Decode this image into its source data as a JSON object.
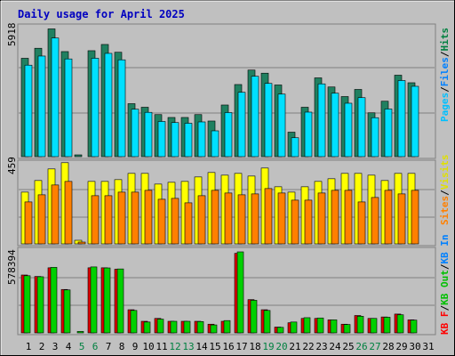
{
  "chart_data": [
    {
      "type": "bar",
      "title": "Daily usage for April 2025",
      "panel": "top",
      "ymax_label": "5918",
      "ylim": [
        0,
        5918
      ],
      "grid": true,
      "categories": [
        "1",
        "2",
        "3",
        "4",
        "5",
        "6",
        "7",
        "8",
        "9",
        "10",
        "11",
        "12",
        "13",
        "14",
        "15",
        "16",
        "17",
        "18",
        "19",
        "20",
        "21",
        "22",
        "23",
        "24",
        "25",
        "26",
        "27",
        "28",
        "29",
        "30",
        "31"
      ],
      "weekend_days": [
        "5",
        "6",
        "12",
        "13",
        "19",
        "20",
        "26",
        "27"
      ],
      "legend_right": [
        {
          "text": "Pages",
          "color": "#00c0ff"
        },
        {
          "text": "/",
          "color": "#000000"
        },
        {
          "text": "Files",
          "color": "#0080ff"
        },
        {
          "text": "/",
          "color": "#000000"
        },
        {
          "text": "Hits",
          "color": "#008040"
        }
      ],
      "series": [
        {
          "name": "Hits",
          "color": "#208060",
          "values": [
            4420,
            4870,
            5740,
            4720,
            80,
            4760,
            5040,
            4690,
            2380,
            2220,
            1890,
            1760,
            1760,
            1890,
            1600,
            2320,
            3240,
            3890,
            3750,
            3220,
            1100,
            2220,
            3540,
            3130,
            2700,
            3020,
            1970,
            2490,
            3660,
            3320,
            0
          ]
        },
        {
          "name": "Pages",
          "color": "#00e0ff",
          "values": [
            4110,
            4520,
            5330,
            4390,
            0,
            4420,
            4640,
            4350,
            2130,
            1990,
            1580,
            1530,
            1500,
            1560,
            1160,
            1980,
            2890,
            3610,
            3290,
            2810,
            850,
            2000,
            3270,
            2850,
            2400,
            2650,
            1750,
            2140,
            3420,
            3160,
            0
          ]
        }
      ]
    },
    {
      "type": "bar",
      "panel": "middle",
      "ymax_label": "459",
      "ylim": [
        0,
        459
      ],
      "grid": true,
      "legend_right": [
        {
          "text": "Sites",
          "color": "#ff8000"
        },
        {
          "text": "/",
          "color": "#000000"
        },
        {
          "text": "Visits",
          "color": "#e0e000"
        }
      ],
      "series": [
        {
          "name": "Visits",
          "color": "#ffff00",
          "values": [
            290,
            355,
            420,
            455,
            20,
            350,
            350,
            360,
            395,
            395,
            335,
            345,
            350,
            375,
            400,
            385,
            395,
            380,
            425,
            320,
            290,
            320,
            350,
            365,
            395,
            395,
            385,
            355,
            395,
            395,
            0
          ]
        },
        {
          "name": "Sites",
          "color": "#ff8000",
          "values": [
            235,
            275,
            330,
            350,
            10,
            270,
            270,
            290,
            290,
            300,
            250,
            255,
            230,
            270,
            300,
            285,
            275,
            280,
            310,
            285,
            245,
            245,
            285,
            300,
            300,
            235,
            260,
            300,
            280,
            300,
            0
          ]
        }
      ]
    },
    {
      "type": "bar",
      "panel": "bottom",
      "ymax_label": "578394",
      "ylim": [
        0,
        578394
      ],
      "grid": true,
      "legend_right": [
        {
          "text": "KB F",
          "color": "#ff0000"
        },
        {
          "text": "/",
          "color": "#000000"
        },
        {
          "text": "KB Out",
          "color": "#00c000"
        },
        {
          "text": "/",
          "color": "#000000"
        },
        {
          "text": "KB In",
          "color": "#0080ff"
        }
      ],
      "series": [
        {
          "name": "KB F",
          "color": "#e00000",
          "values": [
            400000,
            390000,
            450000,
            300000,
            0,
            450000,
            450000,
            440000,
            160000,
            80000,
            100000,
            80000,
            80000,
            80000,
            60000,
            80000,
            550000,
            230000,
            160000,
            40000,
            70000,
            100000,
            100000,
            90000,
            60000,
            120000,
            100000,
            110000,
            130000,
            90000,
            0
          ]
        },
        {
          "name": "KB Out",
          "color": "#00d000",
          "values": [
            395000,
            388000,
            453000,
            297000,
            10000,
            456000,
            449000,
            442000,
            155000,
            75000,
            95000,
            80000,
            80000,
            78000,
            55000,
            85000,
            560000,
            225000,
            155000,
            38000,
            75000,
            105000,
            103000,
            90000,
            58000,
            115000,
            100000,
            108000,
            125000,
            88000,
            0
          ]
        }
      ]
    }
  ]
}
